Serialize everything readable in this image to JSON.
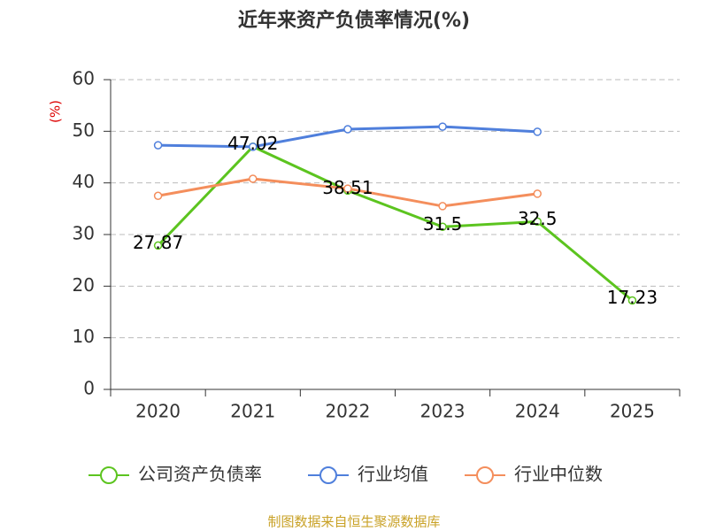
{
  "chart_data": {
    "type": "line",
    "title": "近年来资产负债率情况(%)",
    "y_label": "(%)",
    "categories": [
      "2020",
      "2021",
      "2022",
      "2023",
      "2024",
      "2025"
    ],
    "series": [
      {
        "name": "公司资产负债率",
        "color": "#5cc41f",
        "values": [
          27.87,
          47.02,
          38.51,
          31.5,
          32.5,
          17.23
        ],
        "show_labels": true
      },
      {
        "name": "行业均值",
        "color": "#4f7fdc",
        "values": [
          47.3,
          47.0,
          50.4,
          50.9,
          49.9,
          null
        ]
      },
      {
        "name": "行业中位数",
        "color": "#f48e5c",
        "values": [
          37.5,
          40.8,
          38.9,
          35.5,
          37.9,
          null
        ]
      }
    ],
    "ylim": [
      0,
      60
    ],
    "yticks": [
      0,
      10,
      20,
      30,
      40,
      50,
      60
    ],
    "grid": true,
    "source": "制图数据来自恒生聚源数据库"
  }
}
